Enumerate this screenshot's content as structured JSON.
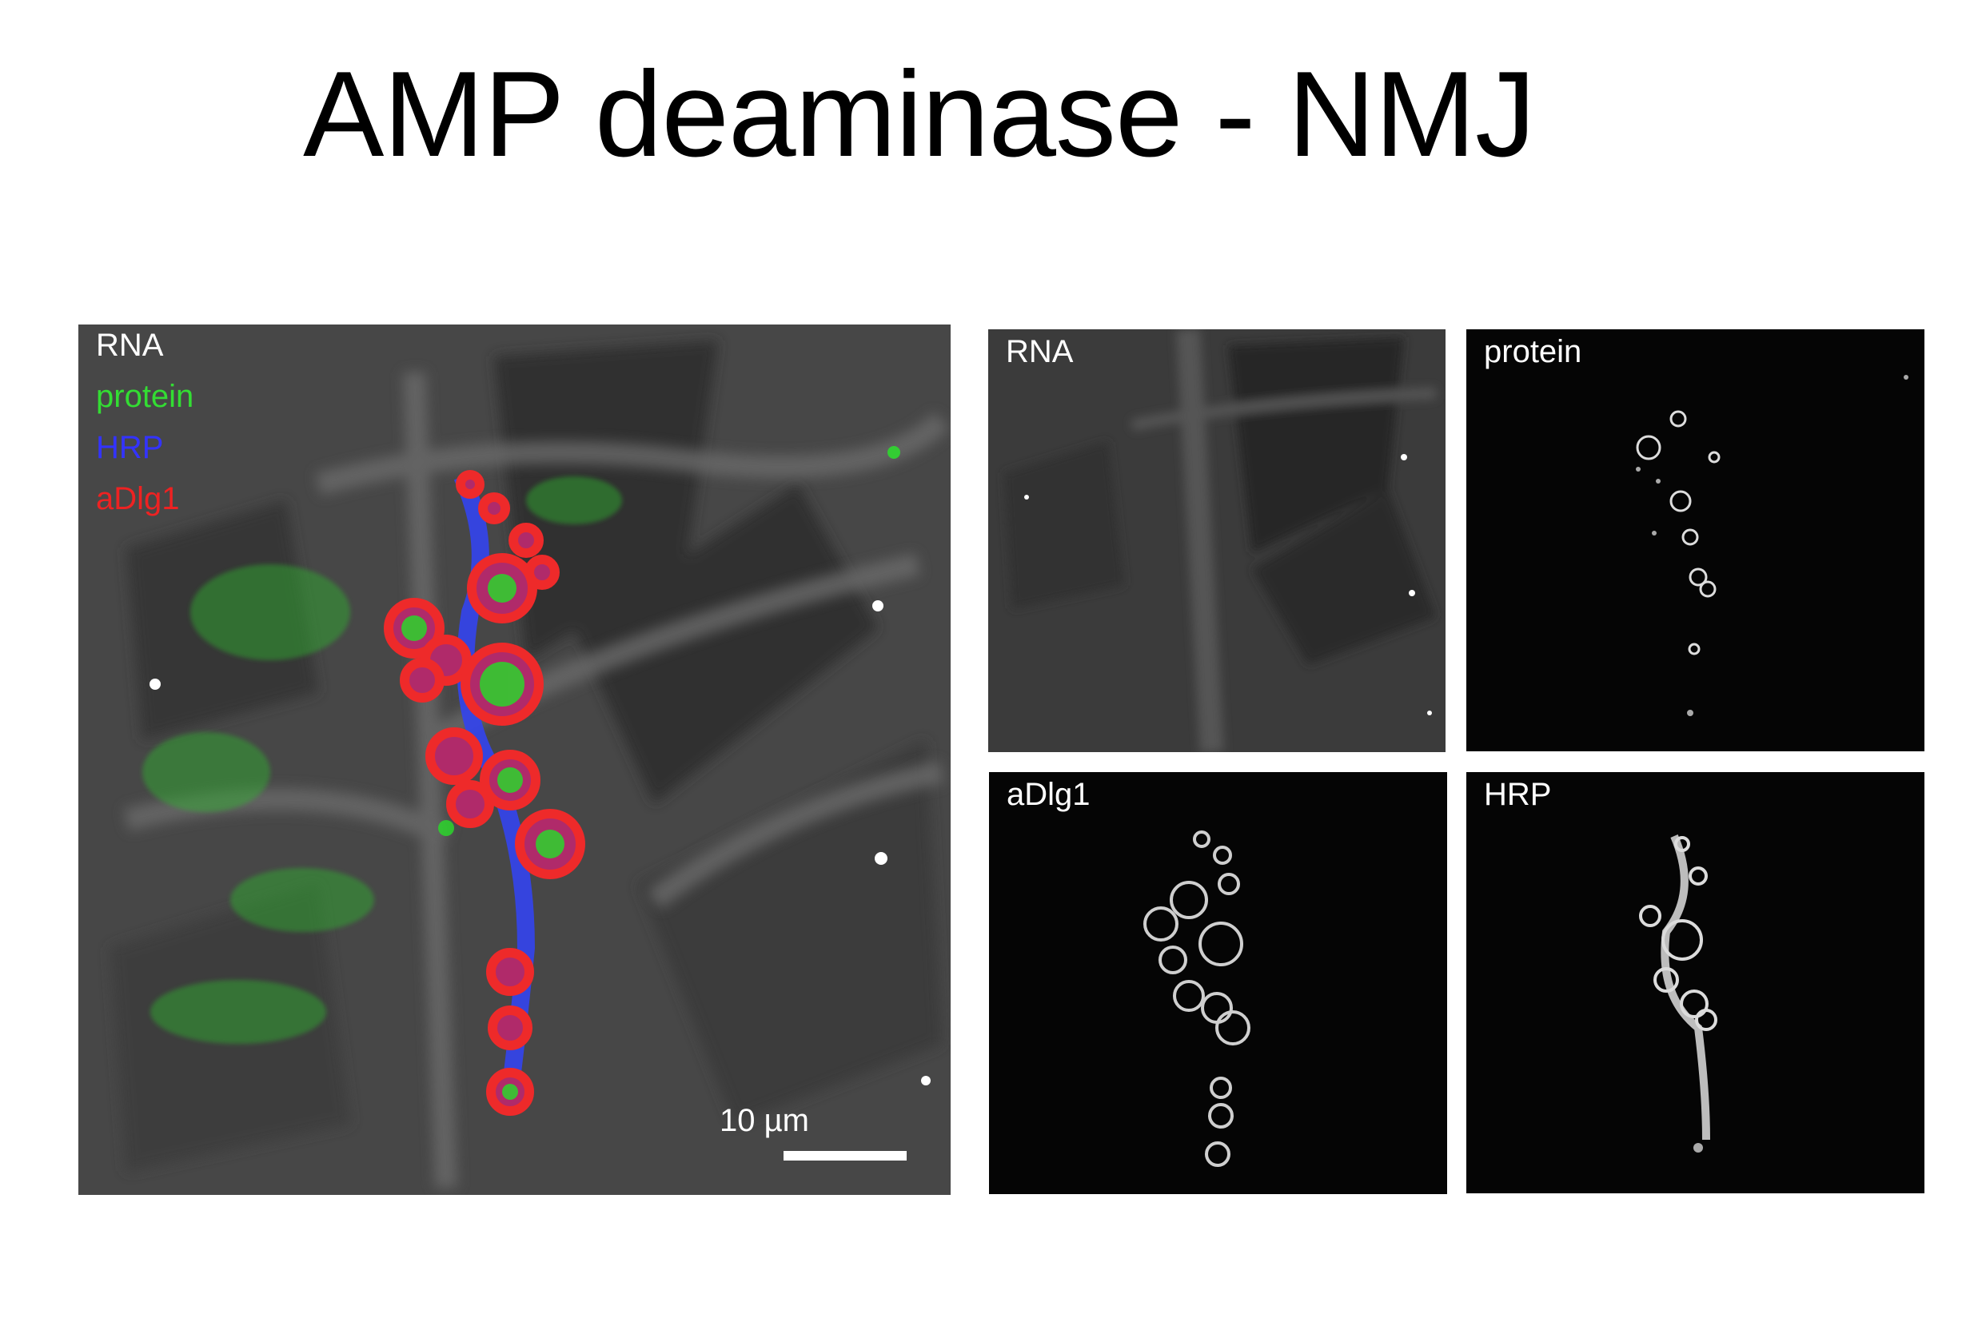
{
  "title": "AMP deaminase - NMJ",
  "main_panel": {
    "legend": [
      {
        "text": "RNA",
        "color": "#ffffff"
      },
      {
        "text": "protein",
        "color": "#33dd33"
      },
      {
        "text": "HRP",
        "color": "#3333ff"
      },
      {
        "text": "aDlg1",
        "color": "#ee2222"
      }
    ],
    "scale_bar_label": "10 µm"
  },
  "channel_panels": [
    {
      "label": "RNA"
    },
    {
      "label": "protein"
    },
    {
      "label": "aDlg1"
    },
    {
      "label": "HRP"
    }
  ]
}
